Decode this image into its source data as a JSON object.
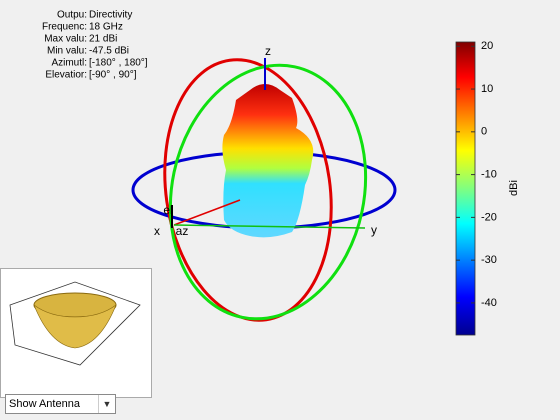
{
  "info": {
    "labels": [
      "Outpu:",
      "Frequenc:",
      "Max valu:",
      "Min valu:",
      "Azimutl:",
      "Elevatior:"
    ],
    "values": [
      "Directivity",
      "18 GHz",
      "21 dBi",
      "-47.5 dBi",
      "[-180° , 180°]",
      "[-90° , 90°]"
    ]
  },
  "colorbar": {
    "label": "dBi",
    "lim": [
      -47.5,
      21
    ],
    "ticks": [
      20,
      10,
      0,
      -10,
      -20,
      -30,
      -40
    ]
  },
  "axes_labels": {
    "x": "x",
    "y": "y",
    "z": "z",
    "el": "el",
    "az": "az"
  },
  "dropdown": {
    "selected": "Show Antenna"
  }
}
